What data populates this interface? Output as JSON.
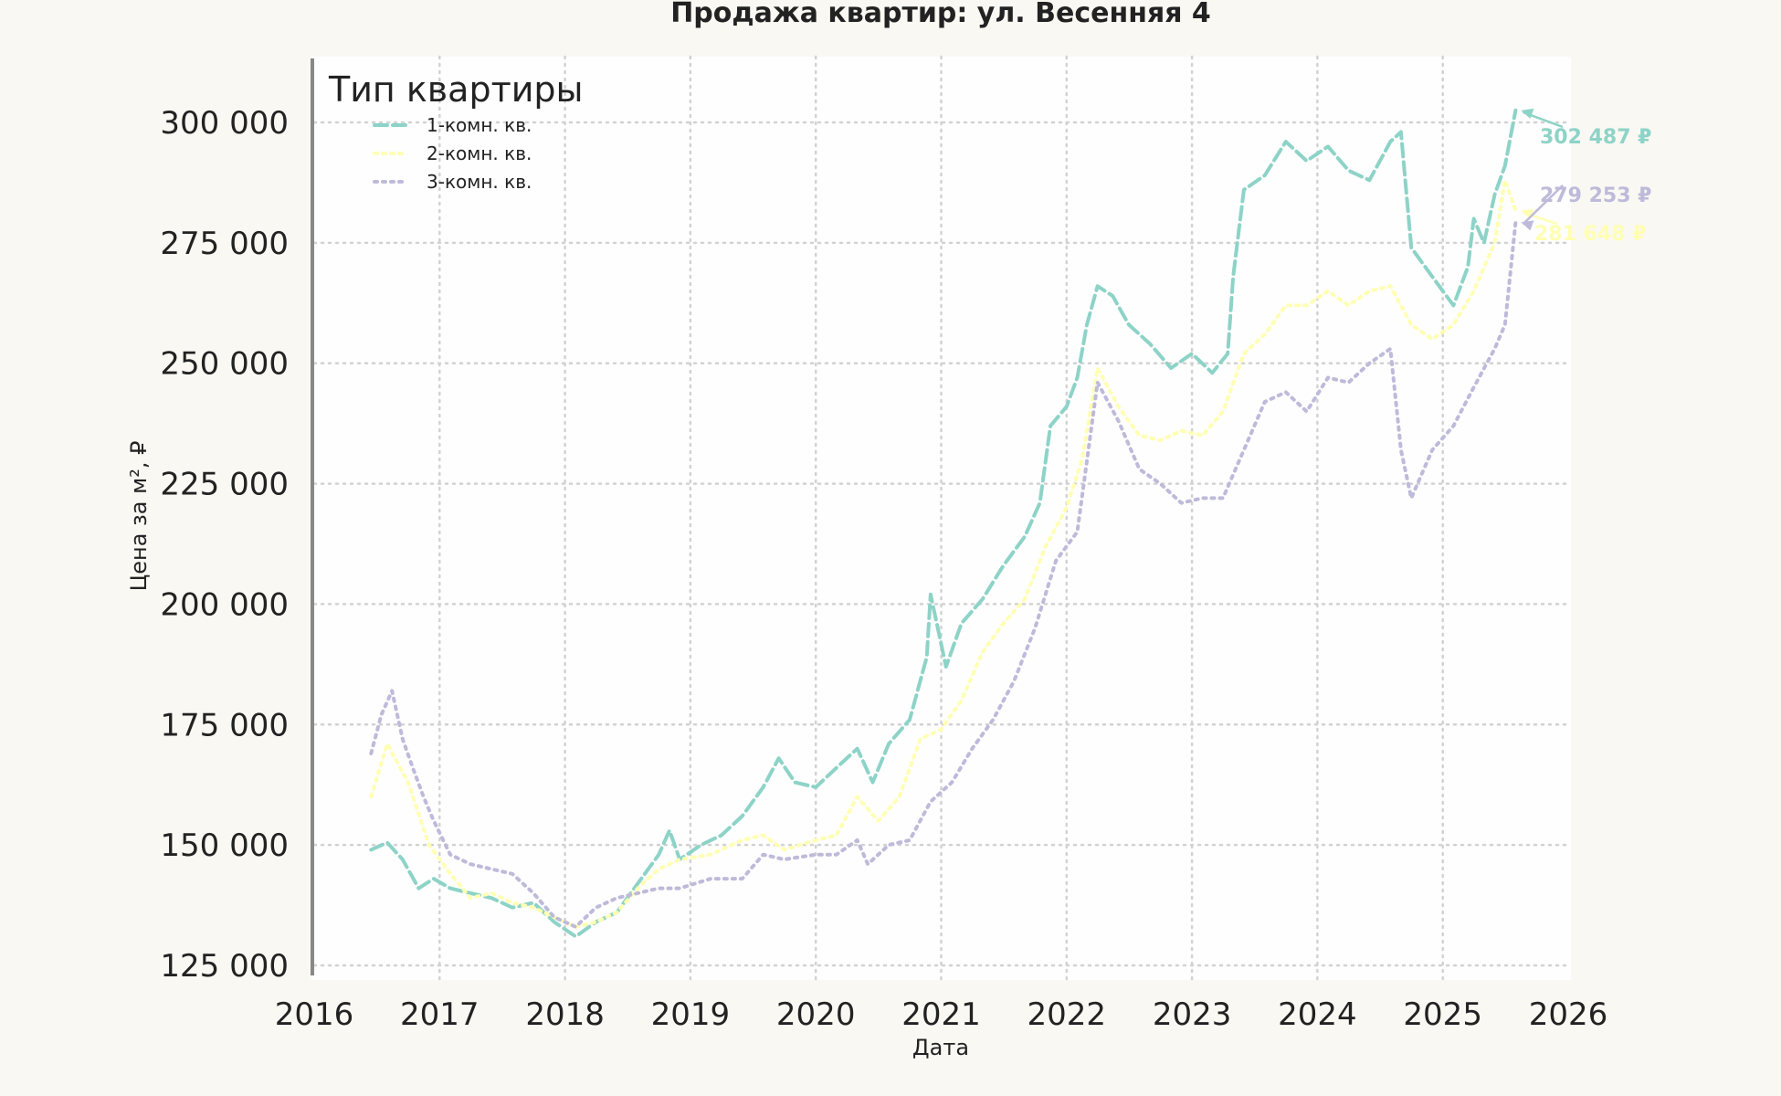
{
  "chart_data": {
    "type": "line",
    "title": "Продажа квартир: ул. Весенняя 4",
    "xlabel": "Дата",
    "ylabel": "Цена за м², ₽",
    "xlim": [
      2016,
      2026
    ],
    "ylim": [
      122000,
      313000
    ],
    "x_ticks": [
      "2016",
      "2017",
      "2018",
      "2019",
      "2020",
      "2021",
      "2022",
      "2023",
      "2024",
      "2025",
      "2026"
    ],
    "y_ticks": [
      "125 000",
      "150 000",
      "175 000",
      "200 000",
      "225 000",
      "250 000",
      "275 000",
      "300 000"
    ],
    "grid": true,
    "legend": {
      "title": "Тип квартиры",
      "placement": "top-left"
    },
    "series": [
      {
        "name": "1-комн. кв.",
        "color": "#8dd3c7",
        "dash": "dashed",
        "end_label": "302 487 ₽",
        "points": [
          [
            "2016-06-15",
            149000
          ],
          [
            "2016-08-01",
            150500
          ],
          [
            "2016-09-15",
            147000
          ],
          [
            "2016-11-01",
            141000
          ],
          [
            "2016-12-15",
            143000
          ],
          [
            "2017-02-01",
            141000
          ],
          [
            "2017-04-01",
            140000
          ],
          [
            "2017-06-01",
            139000
          ],
          [
            "2017-08-01",
            137000
          ],
          [
            "2017-10-01",
            138000
          ],
          [
            "2017-12-01",
            134000
          ],
          [
            "2018-02-01",
            131000
          ],
          [
            "2018-04-01",
            134000
          ],
          [
            "2018-06-01",
            136000
          ],
          [
            "2018-08-01",
            142000
          ],
          [
            "2018-10-01",
            148000
          ],
          [
            "2018-11-01",
            153000
          ],
          [
            "2018-12-01",
            147000
          ],
          [
            "2019-02-01",
            150000
          ],
          [
            "2019-04-01",
            152000
          ],
          [
            "2019-06-01",
            156000
          ],
          [
            "2019-08-01",
            162000
          ],
          [
            "2019-09-15",
            168000
          ],
          [
            "2019-11-01",
            163000
          ],
          [
            "2020-01-01",
            162000
          ],
          [
            "2020-03-01",
            166000
          ],
          [
            "2020-05-01",
            170000
          ],
          [
            "2020-06-15",
            163000
          ],
          [
            "2020-08-01",
            171000
          ],
          [
            "2020-10-01",
            176000
          ],
          [
            "2020-11-20",
            189000
          ],
          [
            "2020-12-01",
            202000
          ],
          [
            "2021-01-15",
            187000
          ],
          [
            "2021-03-01",
            196000
          ],
          [
            "2021-05-01",
            201000
          ],
          [
            "2021-07-01",
            208000
          ],
          [
            "2021-09-01",
            214000
          ],
          [
            "2021-10-15",
            221000
          ],
          [
            "2021-11-15",
            237000
          ],
          [
            "2022-01-01",
            241000
          ],
          [
            "2022-02-01",
            247000
          ],
          [
            "2022-03-01",
            258000
          ],
          [
            "2022-04-01",
            266000
          ],
          [
            "2022-05-15",
            264000
          ],
          [
            "2022-07-01",
            258000
          ],
          [
            "2022-09-01",
            254000
          ],
          [
            "2022-11-01",
            249000
          ],
          [
            "2023-01-01",
            252000
          ],
          [
            "2023-03-01",
            248000
          ],
          [
            "2023-04-15",
            252000
          ],
          [
            "2023-05-01",
            268000
          ],
          [
            "2023-06-01",
            286000
          ],
          [
            "2023-08-01",
            289000
          ],
          [
            "2023-10-01",
            296000
          ],
          [
            "2023-12-01",
            292000
          ],
          [
            "2024-02-01",
            295000
          ],
          [
            "2024-04-01",
            290000
          ],
          [
            "2024-06-01",
            288000
          ],
          [
            "2024-08-01",
            296000
          ],
          [
            "2024-09-01",
            298000
          ],
          [
            "2024-10-01",
            274000
          ],
          [
            "2024-12-01",
            268000
          ],
          [
            "2025-02-01",
            262000
          ],
          [
            "2025-03-15",
            270000
          ],
          [
            "2025-04-01",
            280000
          ],
          [
            "2025-05-01",
            275000
          ],
          [
            "2025-06-01",
            285000
          ],
          [
            "2025-07-01",
            291000
          ],
          [
            "2025-08-01",
            302487
          ]
        ]
      },
      {
        "name": "2-комн. кв.",
        "color": "#ffffb3",
        "dash": "dotted",
        "end_label": "281 648 ₽",
        "points": [
          [
            "2016-06-15",
            160000
          ],
          [
            "2016-08-01",
            171000
          ],
          [
            "2016-10-01",
            163000
          ],
          [
            "2016-12-01",
            150000
          ],
          [
            "2017-02-01",
            144000
          ],
          [
            "2017-04-01",
            139000
          ],
          [
            "2017-06-01",
            140000
          ],
          [
            "2017-08-01",
            138000
          ],
          [
            "2017-10-01",
            137000
          ],
          [
            "2017-12-01",
            135000
          ],
          [
            "2018-02-01",
            133000
          ],
          [
            "2018-04-01",
            134000
          ],
          [
            "2018-06-01",
            136000
          ],
          [
            "2018-08-01",
            141000
          ],
          [
            "2018-10-01",
            145000
          ],
          [
            "2018-12-01",
            147000
          ],
          [
            "2019-03-01",
            148000
          ],
          [
            "2019-06-01",
            151000
          ],
          [
            "2019-08-01",
            152000
          ],
          [
            "2019-10-01",
            149000
          ],
          [
            "2020-01-01",
            151000
          ],
          [
            "2020-03-01",
            152000
          ],
          [
            "2020-05-01",
            160000
          ],
          [
            "2020-07-01",
            155000
          ],
          [
            "2020-09-01",
            160000
          ],
          [
            "2020-11-01",
            172000
          ],
          [
            "2021-01-01",
            174000
          ],
          [
            "2021-03-01",
            180000
          ],
          [
            "2021-05-01",
            190000
          ],
          [
            "2021-07-01",
            196000
          ],
          [
            "2021-09-01",
            201000
          ],
          [
            "2021-11-01",
            212000
          ],
          [
            "2022-01-01",
            220000
          ],
          [
            "2022-02-15",
            230000
          ],
          [
            "2022-04-01",
            249000
          ],
          [
            "2022-06-01",
            241000
          ],
          [
            "2022-08-01",
            235000
          ],
          [
            "2022-10-01",
            234000
          ],
          [
            "2022-12-01",
            236000
          ],
          [
            "2023-02-01",
            235000
          ],
          [
            "2023-04-01",
            240000
          ],
          [
            "2023-06-01",
            252000
          ],
          [
            "2023-08-01",
            256000
          ],
          [
            "2023-10-01",
            262000
          ],
          [
            "2023-12-01",
            262000
          ],
          [
            "2024-02-01",
            265000
          ],
          [
            "2024-04-01",
            262000
          ],
          [
            "2024-06-01",
            265000
          ],
          [
            "2024-08-01",
            266000
          ],
          [
            "2024-10-01",
            258000
          ],
          [
            "2024-12-01",
            255000
          ],
          [
            "2025-02-01",
            258000
          ],
          [
            "2025-04-01",
            265000
          ],
          [
            "2025-06-01",
            275000
          ],
          [
            "2025-07-01",
            288000
          ],
          [
            "2025-08-01",
            281648
          ]
        ]
      },
      {
        "name": "3-комн. кв.",
        "color": "#bebada",
        "dash": "dotted",
        "end_label": "279 253 ₽",
        "points": [
          [
            "2016-06-15",
            169000
          ],
          [
            "2016-07-15",
            177000
          ],
          [
            "2016-08-15",
            182000
          ],
          [
            "2016-09-15",
            172000
          ],
          [
            "2016-10-15",
            166000
          ],
          [
            "2016-11-15",
            160000
          ],
          [
            "2016-12-15",
            155000
          ],
          [
            "2017-02-01",
            148000
          ],
          [
            "2017-04-01",
            146000
          ],
          [
            "2017-06-01",
            145000
          ],
          [
            "2017-08-01",
            144000
          ],
          [
            "2017-10-01",
            140000
          ],
          [
            "2017-12-01",
            135000
          ],
          [
            "2018-02-01",
            133000
          ],
          [
            "2018-04-01",
            137000
          ],
          [
            "2018-06-01",
            139000
          ],
          [
            "2018-08-01",
            140000
          ],
          [
            "2018-10-01",
            141000
          ],
          [
            "2018-12-01",
            141000
          ],
          [
            "2019-03-01",
            143000
          ],
          [
            "2019-06-01",
            143000
          ],
          [
            "2019-08-01",
            148000
          ],
          [
            "2019-10-01",
            147000
          ],
          [
            "2020-01-01",
            148000
          ],
          [
            "2020-03-01",
            148000
          ],
          [
            "2020-05-01",
            151000
          ],
          [
            "2020-06-01",
            146000
          ],
          [
            "2020-08-01",
            150000
          ],
          [
            "2020-10-01",
            151000
          ],
          [
            "2020-12-01",
            159000
          ],
          [
            "2021-02-01",
            163000
          ],
          [
            "2021-04-01",
            170000
          ],
          [
            "2021-06-01",
            176000
          ],
          [
            "2021-08-01",
            184000
          ],
          [
            "2021-10-01",
            195000
          ],
          [
            "2021-12-01",
            209000
          ],
          [
            "2022-02-01",
            215000
          ],
          [
            "2022-04-01",
            246000
          ],
          [
            "2022-06-01",
            238000
          ],
          [
            "2022-08-01",
            228000
          ],
          [
            "2022-10-01",
            225000
          ],
          [
            "2022-12-01",
            221000
          ],
          [
            "2023-02-01",
            222000
          ],
          [
            "2023-04-01",
            222000
          ],
          [
            "2023-06-01",
            232000
          ],
          [
            "2023-08-01",
            242000
          ],
          [
            "2023-10-01",
            244000
          ],
          [
            "2023-12-01",
            240000
          ],
          [
            "2024-02-01",
            247000
          ],
          [
            "2024-04-01",
            246000
          ],
          [
            "2024-06-01",
            250000
          ],
          [
            "2024-08-01",
            253000
          ],
          [
            "2024-09-01",
            232000
          ],
          [
            "2024-10-01",
            222000
          ],
          [
            "2024-12-01",
            232000
          ],
          [
            "2025-02-01",
            237000
          ],
          [
            "2025-04-01",
            245000
          ],
          [
            "2025-06-01",
            253000
          ],
          [
            "2025-07-01",
            258000
          ],
          [
            "2025-08-01",
            279253
          ]
        ]
      }
    ]
  }
}
